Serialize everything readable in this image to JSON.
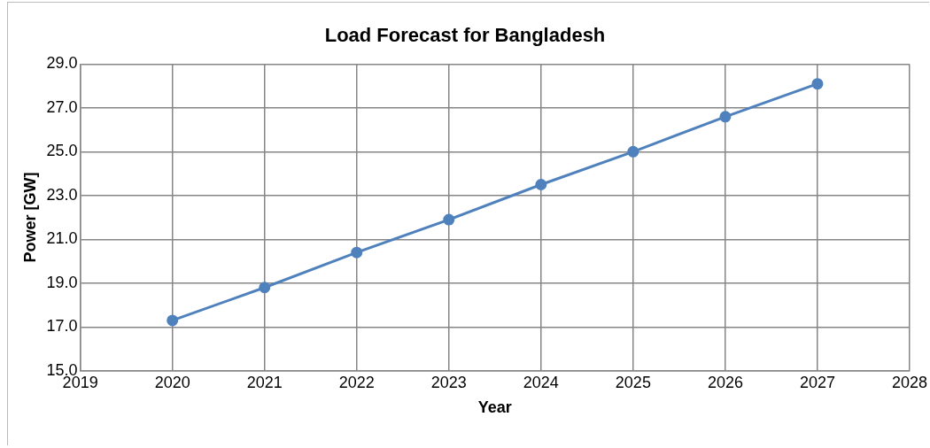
{
  "chart_data": {
    "type": "line",
    "title": "Load Forecast for Bangladesh",
    "xlabel": "Year",
    "ylabel": "Power [GW]",
    "x": [
      2020,
      2021,
      2022,
      2023,
      2024,
      2025,
      2026,
      2027
    ],
    "series": [
      {
        "color": "#4f81bd",
        "values": [
          17.3,
          18.8,
          20.4,
          21.9,
          23.5,
          25.0,
          26.6,
          28.1
        ]
      }
    ],
    "xlim": [
      2019,
      2028
    ],
    "xticks": [
      2019,
      2020,
      2021,
      2022,
      2023,
      2024,
      2025,
      2026,
      2027,
      2028
    ],
    "ylim": [
      15,
      29
    ],
    "yticks": [
      {
        "value": 15,
        "label": "15.0"
      },
      {
        "value": 17,
        "label": "17.0"
      },
      {
        "value": 19,
        "label": "19.0"
      },
      {
        "value": 21,
        "label": "21.0"
      },
      {
        "value": 23,
        "label": "23.0"
      },
      {
        "value": 25,
        "label": "25.0"
      },
      {
        "value": 27,
        "label": "27.0"
      },
      {
        "value": 29,
        "label": "29.0"
      }
    ],
    "grid": true,
    "marker": "circle",
    "line_style": "solid",
    "legend": false
  }
}
